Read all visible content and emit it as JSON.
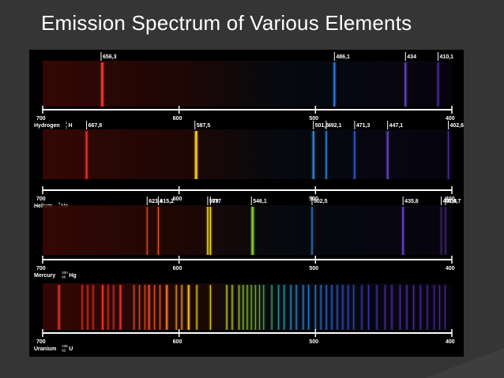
{
  "title": "Emission Spectrum of Various Elements",
  "colors": {
    "background": "#353535",
    "panel": "#000000",
    "axis": "#ffffff"
  },
  "chart_data": {
    "type": "spectrum",
    "x_axis": {
      "unit": "nm",
      "range": [
        700,
        400
      ],
      "ticks": [
        700,
        600,
        500,
        400
      ]
    },
    "spectra": [
      {
        "element": "Hydrogen",
        "label": "Hydrogen",
        "symbol": "H",
        "mass_number": "1",
        "atomic_number": "1",
        "lines": [
          {
            "wavelength": 656.3,
            "label": "656,3",
            "color": "#e8321e",
            "width": 3
          },
          {
            "wavelength": 486.1,
            "label": "486,1",
            "color": "#2f7fe0",
            "width": 2
          },
          {
            "wavelength": 434,
            "label": "434",
            "color": "#6a3fc8",
            "width": 2
          },
          {
            "wavelength": 410.1,
            "label": "410,1",
            "color": "#5530a8",
            "width": 1.5
          }
        ]
      },
      {
        "element": "Helium",
        "label": "Helium",
        "symbol": "He",
        "mass_number": "4",
        "atomic_number": "2",
        "lines": [
          {
            "wavelength": 667.8,
            "label": "667,8",
            "color": "#e8321e",
            "width": 2
          },
          {
            "wavelength": 587.5,
            "label": "587,5",
            "color": "#f3c418",
            "width": 3
          },
          {
            "wavelength": 501.5,
            "label": "501,5",
            "color": "#2f8ee8",
            "width": 2
          },
          {
            "wavelength": 492.1,
            "label": "492,1",
            "color": "#2f7fe0",
            "width": 1.5
          },
          {
            "wavelength": 471.3,
            "label": "471,3",
            "color": "#2f5fd8",
            "width": 1.5
          },
          {
            "wavelength": 447.1,
            "label": "447,1",
            "color": "#6a3fc8",
            "width": 2
          },
          {
            "wavelength": 402.6,
            "label": "402,6",
            "color": "#5530a8",
            "width": 1
          }
        ]
      },
      {
        "element": "Mercury",
        "label": "Mercury",
        "symbol": "Hg",
        "mass_number": "200",
        "atomic_number": "80",
        "lines": [
          {
            "wavelength": 623.4,
            "label": "623,4",
            "color": "#e84a22",
            "width": 1
          },
          {
            "wavelength": 615.2,
            "label": "615,2",
            "color": "#ee5a2a",
            "width": 1
          },
          {
            "wavelength": 579,
            "label": "579",
            "color": "#f6d21e",
            "width": 1.5
          },
          {
            "wavelength": 577,
            "label": "577",
            "color": "#f0dc1e",
            "width": 1.5
          },
          {
            "wavelength": 546.1,
            "label": "546,1",
            "color": "#7ac52a",
            "width": 3
          },
          {
            "wavelength": 502.5,
            "label": "502,5",
            "color": "#2f8ee8",
            "width": 1
          },
          {
            "wavelength": 435.8,
            "label": "435,8",
            "color": "#6a3fc8",
            "width": 2
          },
          {
            "wavelength": 407.8,
            "label": "407,8",
            "color": "#4a2a90",
            "width": 1
          },
          {
            "wavelength": 404.7,
            "label": "404,7",
            "color": "#4a2a90",
            "width": 1
          }
        ]
      },
      {
        "element": "Uranium",
        "label": "Uranium",
        "symbol": "U",
        "mass_number": "238",
        "atomic_number": "92",
        "lines": [
          {
            "wavelength": 688.0,
            "color": "#e8321e",
            "width": 2
          },
          {
            "wavelength": 671.0,
            "color": "#e8321e",
            "width": 1
          },
          {
            "wavelength": 667.0,
            "color": "#e8321e",
            "width": 1
          },
          {
            "wavelength": 663.0,
            "color": "#e8321e",
            "width": 1
          },
          {
            "wavelength": 656.0,
            "color": "#e8321e",
            "width": 2
          },
          {
            "wavelength": 652.0,
            "color": "#e8321e",
            "width": 1
          },
          {
            "wavelength": 648.0,
            "color": "#e8321e",
            "width": 1
          },
          {
            "wavelength": 643.0,
            "color": "#e8321e",
            "width": 2
          },
          {
            "wavelength": 633.0,
            "color": "#e84a22",
            "width": 1
          },
          {
            "wavelength": 629.0,
            "color": "#e84a22",
            "width": 1
          },
          {
            "wavelength": 625.0,
            "color": "#e84a22",
            "width": 1
          },
          {
            "wavelength": 622.0,
            "color": "#e84a22",
            "width": 2
          },
          {
            "wavelength": 618.0,
            "color": "#e85a2a",
            "width": 1
          },
          {
            "wavelength": 614.0,
            "color": "#e85a2a",
            "width": 1
          },
          {
            "wavelength": 609.0,
            "color": "#f07a28",
            "width": 2
          },
          {
            "wavelength": 602.0,
            "color": "#f09a28",
            "width": 1
          },
          {
            "wavelength": 598.0,
            "color": "#f0a828",
            "width": 1
          },
          {
            "wavelength": 593.0,
            "color": "#f2c020",
            "width": 2
          },
          {
            "wavelength": 587.0,
            "color": "#f2d020",
            "width": 1
          },
          {
            "wavelength": 577.0,
            "color": "#ecdc20",
            "width": 1
          },
          {
            "wavelength": 565.0,
            "color": "#c8e024",
            "width": 1
          },
          {
            "wavelength": 561.0,
            "color": "#c0dc24",
            "width": 1
          },
          {
            "wavelength": 556.0,
            "color": "#a8d428",
            "width": 1
          },
          {
            "wavelength": 553.0,
            "color": "#98d028",
            "width": 1
          },
          {
            "wavelength": 550.0,
            "color": "#88cc28",
            "width": 1
          },
          {
            "wavelength": 547.0,
            "color": "#7ac82a",
            "width": 1
          },
          {
            "wavelength": 544.0,
            "color": "#6ac42c",
            "width": 1
          },
          {
            "wavelength": 541.0,
            "color": "#5ac030",
            "width": 1
          },
          {
            "wavelength": 538.0,
            "color": "#3eb84a",
            "width": 1
          },
          {
            "wavelength": 532.0,
            "color": "#30b07a",
            "width": 1
          },
          {
            "wavelength": 527.0,
            "color": "#30a8a0",
            "width": 1
          },
          {
            "wavelength": 523.0,
            "color": "#30a0b8",
            "width": 1
          },
          {
            "wavelength": 518.0,
            "color": "#3098d0",
            "width": 1
          },
          {
            "wavelength": 514.0,
            "color": "#2f90e0",
            "width": 1
          },
          {
            "wavelength": 509.0,
            "color": "#2f8ee8",
            "width": 1
          },
          {
            "wavelength": 505.0,
            "color": "#2f88e8",
            "width": 1
          },
          {
            "wavelength": 500.0,
            "color": "#2f80e4",
            "width": 1
          },
          {
            "wavelength": 496.0,
            "color": "#2f78e0",
            "width": 1
          },
          {
            "wavelength": 492.0,
            "color": "#2f70dc",
            "width": 1
          },
          {
            "wavelength": 488.0,
            "color": "#2f68d8",
            "width": 1
          },
          {
            "wavelength": 484.0,
            "color": "#2f60d4",
            "width": 1
          },
          {
            "wavelength": 480.0,
            "color": "#2f58d0",
            "width": 1
          },
          {
            "wavelength": 476.0,
            "color": "#3250cc",
            "width": 1
          },
          {
            "wavelength": 472.0,
            "color": "#3448c8",
            "width": 1
          },
          {
            "wavelength": 466.0,
            "color": "#3a40c4",
            "width": 1
          },
          {
            "wavelength": 461.0,
            "color": "#4038c0",
            "width": 1
          },
          {
            "wavelength": 455.0,
            "color": "#4834bc",
            "width": 1
          },
          {
            "wavelength": 449.0,
            "color": "#5032b8",
            "width": 1
          },
          {
            "wavelength": 444.0,
            "color": "#5830b4",
            "width": 1
          },
          {
            "wavelength": 438.0,
            "color": "#5a30b0",
            "width": 1
          },
          {
            "wavelength": 433.0,
            "color": "#5a30ac",
            "width": 1
          },
          {
            "wavelength": 428.0,
            "color": "#582ea8",
            "width": 1
          },
          {
            "wavelength": 423.0,
            "color": "#562ca4",
            "width": 1
          },
          {
            "wavelength": 418.0,
            "color": "#542aa0",
            "width": 1
          },
          {
            "wavelength": 413.0,
            "color": "#52289c",
            "width": 1
          },
          {
            "wavelength": 409.0,
            "color": "#502698",
            "width": 1
          },
          {
            "wavelength": 405.0,
            "color": "#4e2494",
            "width": 1
          }
        ]
      }
    ]
  }
}
